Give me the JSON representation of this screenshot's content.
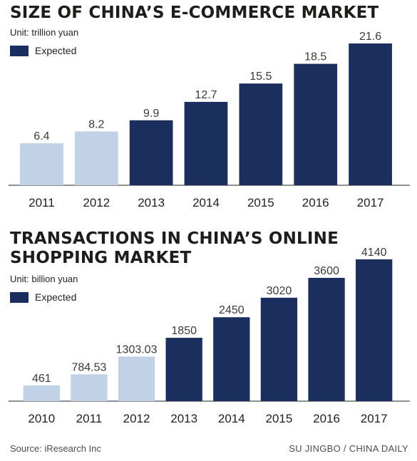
{
  "colors": {
    "actual": "#c1d1e6",
    "expected": "#1a2f5e",
    "axis": "#231f20"
  },
  "source": "Source: iResearch Inc",
  "credit": "SU JINGBO / CHINA DAILY",
  "chart_data": [
    {
      "type": "bar",
      "title": "SIZE OF CHINA’S E-COMMERCE MARKET",
      "unit": "Unit: trillion yuan",
      "legend": "Expected",
      "categories": [
        "2011",
        "2012",
        "2013",
        "2014",
        "2015",
        "2016",
        "2017"
      ],
      "values": [
        6.4,
        8.2,
        9.9,
        12.7,
        15.5,
        18.5,
        21.6
      ],
      "labels": [
        "6.4",
        "8.2",
        "9.9",
        "12.7",
        "15.5",
        "18.5",
        "21.6"
      ],
      "expected": [
        false,
        false,
        true,
        true,
        true,
        true,
        true
      ],
      "ylim": [
        0,
        21.6
      ],
      "grid": false
    },
    {
      "type": "bar",
      "title": "TRANSACTIONS IN CHINA’S ONLINE SHOPPING MARKET",
      "title_lines": [
        "TRANSACTIONS IN CHINA’S ONLINE",
        "SHOPPING MARKET"
      ],
      "unit": "Unit: billion yuan",
      "legend": "Expected",
      "categories": [
        "2010",
        "2011",
        "2012",
        "2013",
        "2014",
        "2015",
        "2016",
        "2017"
      ],
      "values": [
        461,
        784.53,
        1303.03,
        1850,
        2450,
        3020,
        3600,
        4140
      ],
      "labels": [
        "461",
        "784.53",
        "1303.03",
        "1850",
        "2450",
        "3020",
        "3600",
        "4140"
      ],
      "expected": [
        false,
        false,
        false,
        true,
        true,
        true,
        true,
        true
      ],
      "ylim": [
        0,
        4140
      ],
      "grid": false
    }
  ]
}
